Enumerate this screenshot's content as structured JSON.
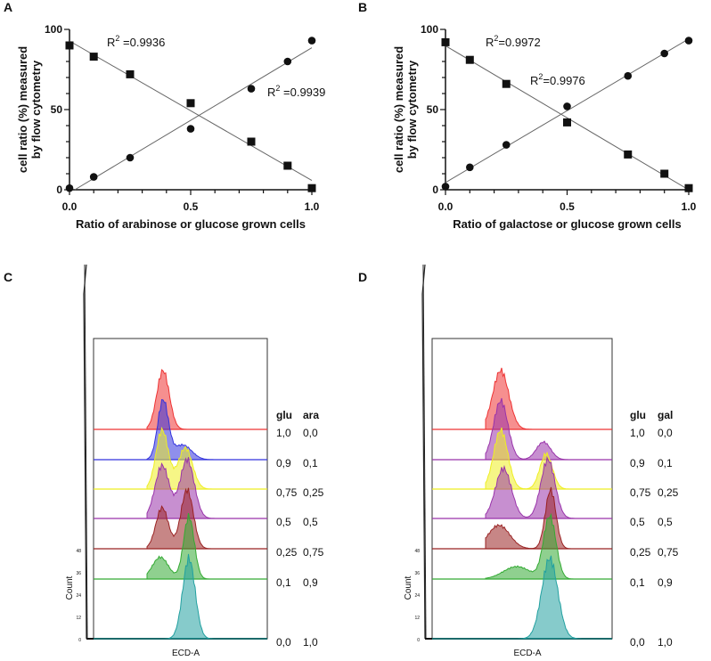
{
  "chart_data": [
    {
      "panel": "A",
      "type": "scatter",
      "xlabel": "Ratio of arabinose or glucose grown cells",
      "ylabel_line1": "cell ratio (%) measured",
      "ylabel_line2": "by flow cytometry",
      "xlim": [
        0,
        1
      ],
      "ylim": [
        0,
        100
      ],
      "xticks": [
        "0.0",
        "0.5",
        "1.0"
      ],
      "yticks": [
        "0",
        "50",
        "100"
      ],
      "x": [
        0,
        0.1,
        0.25,
        0.5,
        0.75,
        0.9,
        1.0
      ],
      "series": [
        {
          "name": "squares",
          "marker": "square",
          "values": [
            90,
            83,
            72,
            54,
            30,
            15,
            1
          ],
          "r2": "R² =0.9936"
        },
        {
          "name": "circles",
          "marker": "circle",
          "values": [
            1,
            8,
            20,
            38,
            63,
            80,
            93
          ],
          "r2": "R² =0.9939"
        }
      ]
    },
    {
      "panel": "B",
      "type": "scatter",
      "xlabel": "Ratio of galactose or glucose grown cells",
      "ylabel_line1": "cell ratio (%) measured",
      "ylabel_line2": "by flow cytometry",
      "xlim": [
        0,
        1
      ],
      "ylim": [
        0,
        100
      ],
      "xticks": [
        "0.0",
        "0.5",
        "1.0"
      ],
      "yticks": [
        "0",
        "50",
        "100"
      ],
      "x": [
        0,
        0.1,
        0.25,
        0.5,
        0.75,
        0.9,
        1.0
      ],
      "series": [
        {
          "name": "squares",
          "marker": "square",
          "values": [
            92,
            81,
            66,
            42,
            22,
            10,
            1
          ],
          "r2": "R²=0.9972"
        },
        {
          "name": "circles",
          "marker": "circle",
          "values": [
            2,
            14,
            28,
            52,
            71,
            85,
            93
          ],
          "r2": "R²=0.9976"
        }
      ]
    }
  ],
  "histograms": [
    {
      "panel": "C",
      "xlabel": "ECD-A",
      "ylabel": "Count",
      "yticks": [
        "0",
        "12",
        "24",
        "36",
        "48"
      ],
      "col_headers": [
        "glu",
        "ara"
      ],
      "rows": [
        {
          "a": "1,0",
          "b": "0,0",
          "color": "#ee3333"
        },
        {
          "a": "0,9",
          "b": "0,1",
          "color": "#3333dd"
        },
        {
          "a": "0,75",
          "b": "0,25",
          "color": "#eeee22"
        },
        {
          "a": "0,5",
          "b": "0,5",
          "color": "#9933aa"
        },
        {
          "a": "0,25",
          "b": "0,75",
          "color": "#992222"
        },
        {
          "a": "0,1",
          "b": "0,9",
          "color": "#33aa33"
        },
        {
          "a": "0,0",
          "b": "1,0",
          "color": "#22a0a0"
        }
      ]
    },
    {
      "panel": "D",
      "xlabel": "ECD-A",
      "ylabel": "Count",
      "yticks": [
        "0",
        "12",
        "24",
        "36",
        "48"
      ],
      "col_headers": [
        "glu",
        "gal"
      ],
      "rows": [
        {
          "a": "1,0",
          "b": "0,0",
          "color": "#ee3333"
        },
        {
          "a": "0,9",
          "b": "0,1",
          "color": "#9933aa"
        },
        {
          "a": "0,75",
          "b": "0,25",
          "color": "#eeee22"
        },
        {
          "a": "0,5",
          "b": "0,5",
          "color": "#9933aa"
        },
        {
          "a": "0,25",
          "b": "0,75",
          "color": "#992222"
        },
        {
          "a": "0,1",
          "b": "0,9",
          "color": "#33aa33"
        },
        {
          "a": "0,0",
          "b": "1,0",
          "color": "#22a0a0"
        }
      ]
    }
  ]
}
